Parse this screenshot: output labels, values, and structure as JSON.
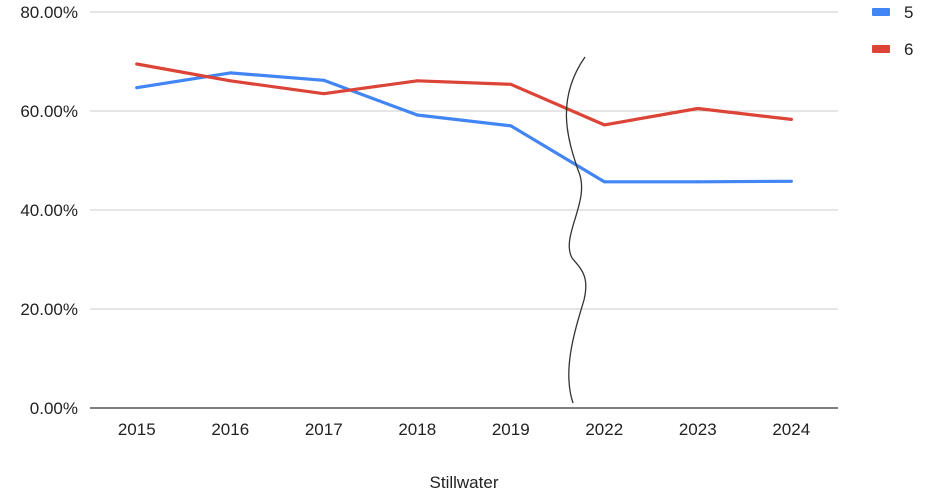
{
  "chart_data": {
    "type": "line",
    "title": "",
    "xlabel": "Stillwater",
    "ylabel": "",
    "categories": [
      "2015",
      "2016",
      "2017",
      "2018",
      "2019",
      "2022",
      "2023",
      "2024"
    ],
    "y_ticks": [
      "0.00%",
      "20.00%",
      "40.00%",
      "60.00%",
      "80.00%"
    ],
    "ylim": [
      0,
      80
    ],
    "grid": true,
    "legend_position": "top-right",
    "series": [
      {
        "name": "5",
        "color": "#4285F4",
        "values": [
          64.7,
          67.7,
          66.2,
          59.2,
          57.0,
          45.7,
          45.7,
          45.8
        ]
      },
      {
        "name": "6",
        "color": "#DB4437",
        "values": [
          69.5,
          66.1,
          63.5,
          66.1,
          65.4,
          57.2,
          60.5,
          58.3
        ]
      }
    ],
    "annotation": "hand-drawn axis break line between 2019 and 2022"
  }
}
